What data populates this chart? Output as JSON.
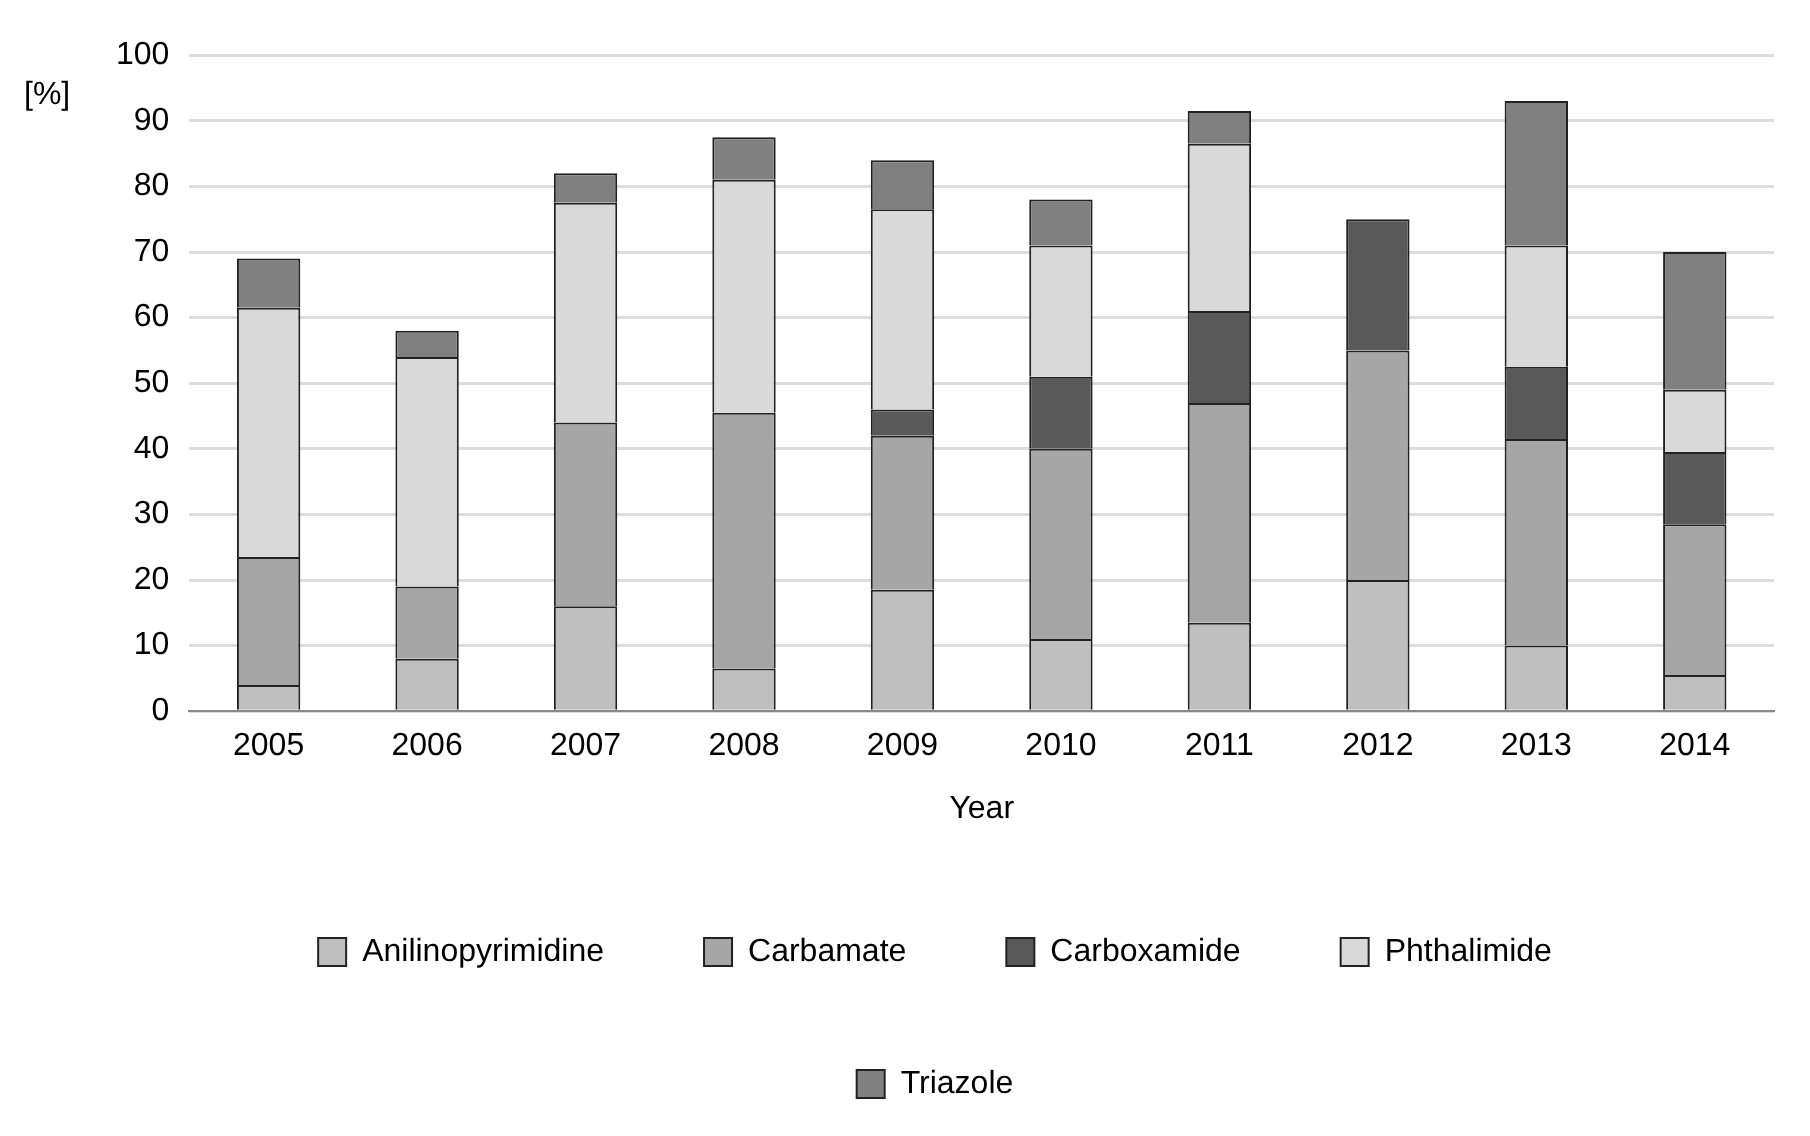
{
  "chart_data": {
    "type": "bar",
    "stacked": true,
    "xlabel": "Year",
    "ylabel": "[%]",
    "categories": [
      "2005",
      "2006",
      "2007",
      "2008",
      "2009",
      "2010",
      "2011",
      "2012",
      "2013",
      "2014"
    ],
    "series": [
      {
        "name": "Anilinopyrimidine",
        "color": "#bfbfbf",
        "values": [
          4,
          8,
          16,
          6.5,
          18.5,
          11,
          13.5,
          20,
          10,
          5.5
        ]
      },
      {
        "name": "Carbamate",
        "color": "#a6a6a6",
        "values": [
          19.5,
          11,
          28,
          39,
          23.5,
          29,
          33.5,
          35,
          31.5,
          23
        ]
      },
      {
        "name": "Carboxamide",
        "color": "#595959",
        "values": [
          0,
          0,
          0,
          0,
          4,
          11,
          14,
          20,
          11,
          11
        ]
      },
      {
        "name": "Phthalimide",
        "color": "#d9d9d9",
        "values": [
          38,
          35,
          33.5,
          35.5,
          30.5,
          20,
          25.5,
          0,
          18.5,
          9.5
        ]
      },
      {
        "name": "Triazole",
        "color": "#808080",
        "values": [
          7.5,
          4,
          4.5,
          6.5,
          7.5,
          7,
          5,
          0,
          22,
          21
        ]
      }
    ],
    "ylim": [
      0,
      100
    ],
    "yticks": [
      0,
      10,
      20,
      30,
      40,
      50,
      60,
      70,
      80,
      90,
      100
    ],
    "grid": "y",
    "legend": "bottom"
  }
}
